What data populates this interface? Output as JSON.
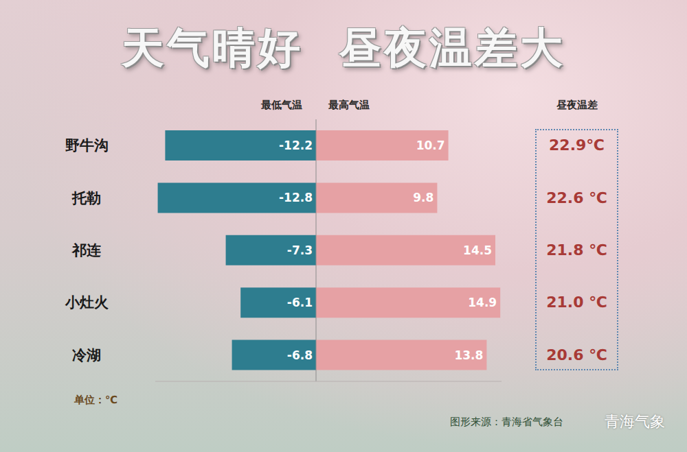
{
  "chart_data": {
    "type": "bar",
    "title": "天气晴好  昼夜温差大",
    "orientation": "horizontal",
    "stacked": true,
    "data_labels": true,
    "tick_labels": "y",
    "categories": [
      "野牛沟",
      "托勒",
      "祁连",
      "小灶火",
      "冷湖"
    ],
    "series": [
      {
        "name": "最低气温",
        "color": "#2e7d8f",
        "values": [
          -12.2,
          -12.8,
          -7.3,
          -6.1,
          -6.8
        ]
      },
      {
        "name": "最高气温",
        "color": "#e6a1a4",
        "values": [
          10.7,
          9.8,
          14.5,
          14.9,
          13.8
        ]
      }
    ],
    "xlim": [
      -13,
      15
    ],
    "temperature_difference": {
      "title": "昼夜温差",
      "color": "#a83a36",
      "values": [
        22.9,
        22.6,
        21.8,
        21.0,
        20.6
      ],
      "value_labels": [
        "22.9℃",
        "22.6 ℃",
        "21.8 ℃",
        "21.0 ℃",
        "20.6 ℃"
      ]
    },
    "unit_note": "单位：℃",
    "source": "图形来源：青海省气象台",
    "watermark": "青海气象"
  }
}
